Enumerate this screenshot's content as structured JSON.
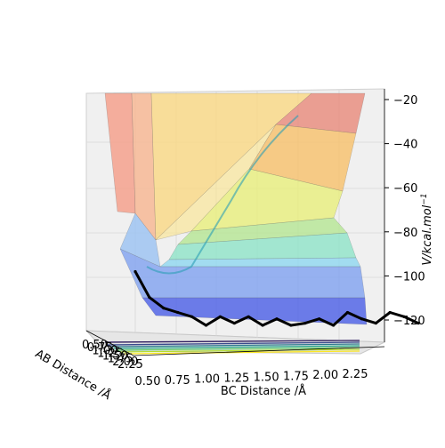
{
  "chart_data": {
    "type": "surface3d",
    "xlabel": "BC Distance /Å",
    "ylabel": "AB Distance /Å",
    "zlabel_tex": "V/kcal.mol",
    "zlabel_exp": "−1",
    "x_ticks": [
      "0.50",
      "0.75",
      "1.00",
      "1.25",
      "1.50",
      "1.75",
      "2.00",
      "2.25"
    ],
    "y_ticks": [
      "0.50",
      "0.75",
      "1.00",
      "1.25",
      "1.50",
      "1.75",
      "2.00",
      "2.25"
    ],
    "z_ticks": [
      "−20",
      "−40",
      "−60",
      "−80",
      "−100",
      "−120"
    ],
    "z_values": [
      -20,
      -40,
      -60,
      -80,
      -100,
      -120
    ],
    "trajectory": {
      "note": "Energy along the reaction path (black line on the back wall)",
      "x": [
        0.45,
        0.55,
        0.65,
        0.75,
        0.85,
        0.95,
        1.05,
        1.15,
        1.25,
        1.35,
        1.45,
        1.55,
        1.65,
        1.75,
        1.85,
        1.95,
        2.05,
        2.15,
        2.25,
        2.35,
        2.45
      ],
      "v": [
        -100,
        -112,
        -117,
        -119,
        -121,
        -125,
        -121,
        -124,
        -121,
        -125,
        -122,
        -125,
        -124,
        -122,
        -125,
        -119,
        -122,
        -124,
        -119,
        -121,
        -124
      ]
    },
    "grid": true,
    "colormap": "jet surface with viridis contours on floor"
  }
}
